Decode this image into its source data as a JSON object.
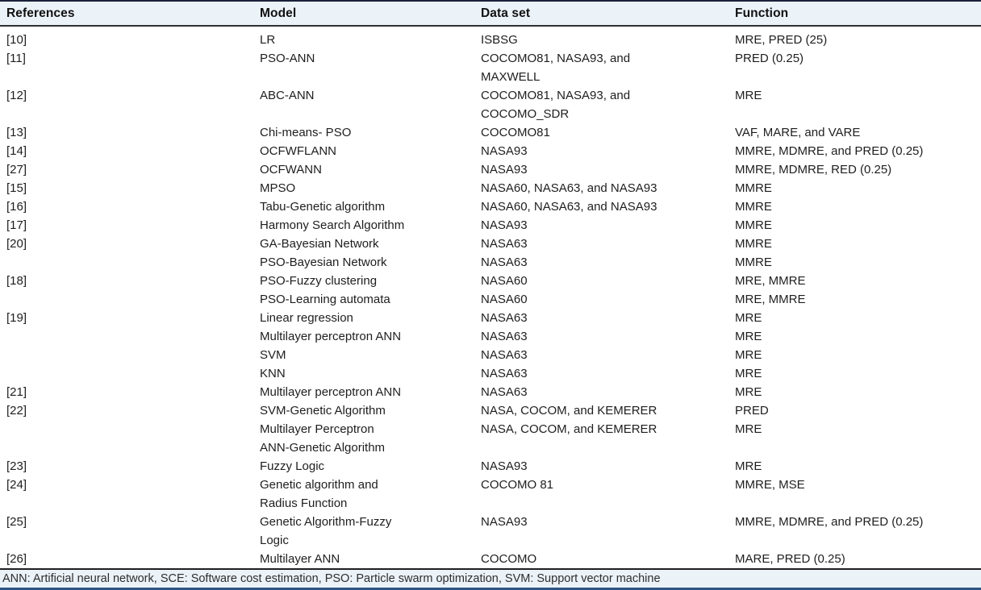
{
  "colors": {
    "header_band_bg": "#ebf2f8",
    "footnote_band_bg": "#ebf2f8",
    "top_border": "#1a2138",
    "header_rule": "#2f2f2f",
    "footnote_rule": "#1f1f1f",
    "bottom_border": "#2d5583",
    "body_text": "#1e1e1e"
  },
  "table": {
    "columns": [
      "References",
      "Model",
      "Data set",
      "Function"
    ],
    "rows": [
      {
        "ref": "[10]",
        "model": "LR",
        "dataset": "ISBSG",
        "function": "MRE, PRED (25)"
      },
      {
        "ref": "[11]",
        "model": "PSO-ANN",
        "dataset": "COCOMO81, NASA93, and\nMAXWELL",
        "function": "PRED (0.25)"
      },
      {
        "ref": "[12]",
        "model": "ABC-ANN",
        "dataset": "COCOMO81, NASA93, and\nCOCOMO_SDR",
        "function": "MRE"
      },
      {
        "ref": "[13]",
        "model": "Chi-means- PSO",
        "dataset": "COCOMO81",
        "function": "VAF, MARE, and VARE"
      },
      {
        "ref": "[14]",
        "model": "OCFWFLANN",
        "dataset": "NASA93",
        "function": "MMRE, MDMRE, and PRED (0.25)"
      },
      {
        "ref": "[27]",
        "model": "OCFWANN",
        "dataset": "NASA93",
        "function": "MMRE, MDMRE, RED (0.25)"
      },
      {
        "ref": "[15]",
        "model": "MPSO",
        "dataset": "NASA60, NASA63, and NASA93",
        "function": "MMRE"
      },
      {
        "ref": "[16]",
        "model": "Tabu-Genetic algorithm",
        "dataset": "NASA60, NASA63, and NASA93",
        "function": "MMRE"
      },
      {
        "ref": "[17]",
        "model": "Harmony Search Algorithm",
        "dataset": "NASA93",
        "function": "MMRE"
      },
      {
        "ref": "[20]",
        "model": "GA-Bayesian Network",
        "dataset": "NASA63",
        "function": "MMRE"
      },
      {
        "ref": "",
        "model": "PSO-Bayesian Network",
        "dataset": "NASA63",
        "function": "MMRE"
      },
      {
        "ref": "[18]",
        "model": "PSO-Fuzzy clustering",
        "dataset": "NASA60",
        "function": "MRE, MMRE"
      },
      {
        "ref": "",
        "model": "PSO-Learning automata",
        "dataset": "NASA60",
        "function": "MRE, MMRE"
      },
      {
        "ref": "[19]",
        "model": "Linear regression",
        "dataset": "NASA63",
        "function": "MRE"
      },
      {
        "ref": "",
        "model": "Multilayer perceptron ANN",
        "dataset": "NASA63",
        "function": "MRE"
      },
      {
        "ref": "",
        "model": "SVM",
        "dataset": "NASA63",
        "function": "MRE"
      },
      {
        "ref": "",
        "model": "KNN",
        "dataset": "NASA63",
        "function": "MRE"
      },
      {
        "ref": "[21]",
        "model": "Multilayer perceptron ANN",
        "dataset": "NASA63",
        "function": "MRE"
      },
      {
        "ref": "[22]",
        "model": "SVM-Genetic Algorithm",
        "dataset": "NASA, COCOM, and KEMERER",
        "function": "PRED"
      },
      {
        "ref": "",
        "model": "Multilayer Perceptron\nANN-Genetic Algorithm",
        "dataset": "NASA, COCOM, and KEMERER",
        "function": "MRE"
      },
      {
        "ref": "[23]",
        "model": "Fuzzy Logic",
        "dataset": "NASA93",
        "function": "MRE"
      },
      {
        "ref": "[24]",
        "model": "Genetic algorithm and\nRadius Function",
        "dataset": "COCOMO 81",
        "function": "MMRE, MSE"
      },
      {
        "ref": "[25]",
        "model": "Genetic Algorithm-Fuzzy\nLogic",
        "dataset": "NASA93",
        "function": "MMRE, MDMRE, and PRED (0.25)"
      },
      {
        "ref": "[26]",
        "model": "Multilayer ANN",
        "dataset": "COCOMO",
        "function": "MARE, PRED (0.25)"
      }
    ],
    "footnote": "ANN: Artificial neural network, SCE: Software cost estimation, PSO: Particle swarm optimization, SVM: Support vector machine"
  }
}
